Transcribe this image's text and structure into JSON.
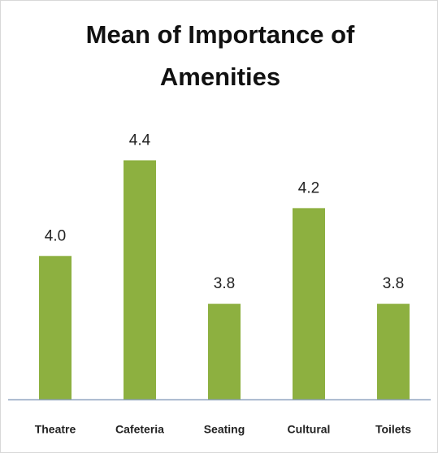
{
  "chart_data": {
    "type": "bar",
    "title": "Mean of Importance of Amenities",
    "categories": [
      "Theatre",
      "Cafeteria",
      "Seating",
      "Cultural",
      "Toilets"
    ],
    "values": [
      4.0,
      4.4,
      3.8,
      4.2,
      3.8
    ],
    "value_labels": [
      "4.0",
      "4.4",
      "3.8",
      "4.2",
      "3.8"
    ],
    "color": "#8db040",
    "ylim": [
      3.4,
      4.5
    ]
  }
}
